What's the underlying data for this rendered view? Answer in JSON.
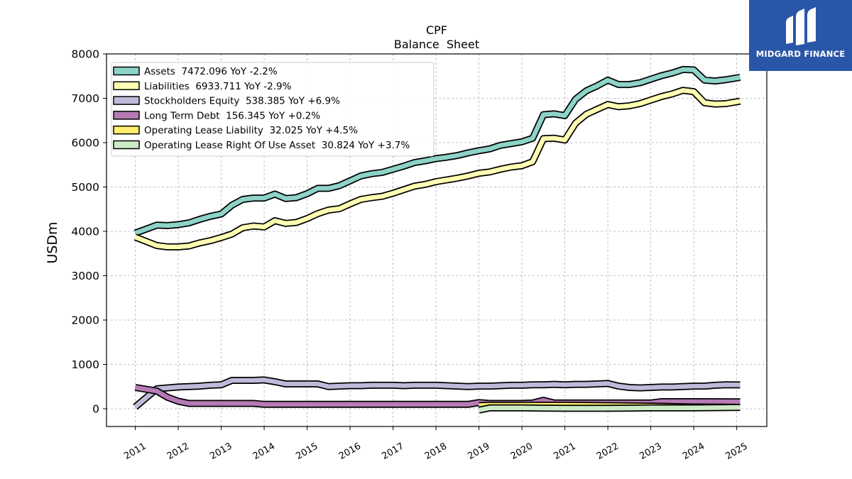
{
  "chart_data": {
    "type": "line",
    "title": "CPF",
    "subtitle": "Balance  Sheet",
    "ylabel": "USDm",
    "xlabel": "",
    "ylim": [
      -400,
      8000
    ],
    "xlim": [
      2010.33,
      2025.7
    ],
    "yticks": [
      0,
      1000,
      2000,
      3000,
      4000,
      5000,
      6000,
      7000,
      8000
    ],
    "xticks": [
      "2011",
      "2012",
      "2013",
      "2014",
      "2015",
      "2016",
      "2017",
      "2018",
      "2019",
      "2020",
      "2021",
      "2022",
      "2023",
      "2024",
      "2025"
    ],
    "grid": true,
    "legend_position": "top-left",
    "series": [
      {
        "name": "Assets",
        "legend": "Assets  7472.096 YoY -2.2%",
        "color": "#8dd3c7",
        "points": [
          [
            2011.0,
            3960
          ],
          [
            2011.5,
            4140
          ],
          [
            2011.75,
            4130
          ],
          [
            2012.0,
            4150
          ],
          [
            2012.25,
            4190
          ],
          [
            2012.5,
            4270
          ],
          [
            2012.75,
            4340
          ],
          [
            2013.0,
            4390
          ],
          [
            2013.25,
            4590
          ],
          [
            2013.5,
            4720
          ],
          [
            2013.75,
            4750
          ],
          [
            2014.0,
            4750
          ],
          [
            2014.25,
            4840
          ],
          [
            2014.5,
            4740
          ],
          [
            2014.75,
            4760
          ],
          [
            2015.0,
            4850
          ],
          [
            2015.25,
            4970
          ],
          [
            2015.5,
            4970
          ],
          [
            2015.75,
            5030
          ],
          [
            2016.0,
            5140
          ],
          [
            2016.25,
            5250
          ],
          [
            2016.5,
            5300
          ],
          [
            2016.75,
            5330
          ],
          [
            2017.0,
            5400
          ],
          [
            2017.25,
            5470
          ],
          [
            2017.5,
            5550
          ],
          [
            2017.75,
            5590
          ],
          [
            2018.0,
            5640
          ],
          [
            2018.25,
            5670
          ],
          [
            2018.5,
            5710
          ],
          [
            2018.75,
            5770
          ],
          [
            2019.0,
            5820
          ],
          [
            2019.25,
            5860
          ],
          [
            2019.5,
            5940
          ],
          [
            2019.75,
            5980
          ],
          [
            2020.0,
            6020
          ],
          [
            2020.25,
            6100
          ],
          [
            2020.5,
            6630
          ],
          [
            2020.75,
            6650
          ],
          [
            2021.0,
            6610
          ],
          [
            2021.25,
            6980
          ],
          [
            2021.5,
            7170
          ],
          [
            2021.75,
            7280
          ],
          [
            2022.0,
            7410
          ],
          [
            2022.25,
            7310
          ],
          [
            2022.5,
            7310
          ],
          [
            2022.75,
            7350
          ],
          [
            2023.0,
            7430
          ],
          [
            2023.25,
            7510
          ],
          [
            2023.5,
            7570
          ],
          [
            2023.75,
            7650
          ],
          [
            2024.0,
            7640
          ],
          [
            2024.25,
            7410
          ],
          [
            2024.5,
            7390
          ],
          [
            2024.75,
            7420
          ],
          [
            2025.08,
            7472
          ]
        ]
      },
      {
        "name": "Liabilities",
        "legend": "Liabilities  6933.711 YoY -2.9%",
        "color": "#ffffb3",
        "points": [
          [
            2011.0,
            3870
          ],
          [
            2011.5,
            3680
          ],
          [
            2011.75,
            3650
          ],
          [
            2012.0,
            3650
          ],
          [
            2012.25,
            3670
          ],
          [
            2012.5,
            3740
          ],
          [
            2012.75,
            3790
          ],
          [
            2013.0,
            3860
          ],
          [
            2013.25,
            3940
          ],
          [
            2013.5,
            4080
          ],
          [
            2013.75,
            4120
          ],
          [
            2014.0,
            4100
          ],
          [
            2014.25,
            4240
          ],
          [
            2014.5,
            4180
          ],
          [
            2014.75,
            4200
          ],
          [
            2015.0,
            4290
          ],
          [
            2015.25,
            4400
          ],
          [
            2015.5,
            4480
          ],
          [
            2015.75,
            4510
          ],
          [
            2016.0,
            4620
          ],
          [
            2016.25,
            4720
          ],
          [
            2016.5,
            4760
          ],
          [
            2016.75,
            4790
          ],
          [
            2017.0,
            4860
          ],
          [
            2017.25,
            4940
          ],
          [
            2017.5,
            5020
          ],
          [
            2017.75,
            5060
          ],
          [
            2018.0,
            5120
          ],
          [
            2018.25,
            5160
          ],
          [
            2018.5,
            5200
          ],
          [
            2018.75,
            5250
          ],
          [
            2019.0,
            5310
          ],
          [
            2019.25,
            5340
          ],
          [
            2019.5,
            5400
          ],
          [
            2019.75,
            5450
          ],
          [
            2020.0,
            5480
          ],
          [
            2020.25,
            5570
          ],
          [
            2020.5,
            6090
          ],
          [
            2020.75,
            6100
          ],
          [
            2021.0,
            6060
          ],
          [
            2021.25,
            6440
          ],
          [
            2021.5,
            6640
          ],
          [
            2021.75,
            6750
          ],
          [
            2022.0,
            6860
          ],
          [
            2022.25,
            6810
          ],
          [
            2022.5,
            6830
          ],
          [
            2022.75,
            6880
          ],
          [
            2023.0,
            6960
          ],
          [
            2023.25,
            7040
          ],
          [
            2023.5,
            7100
          ],
          [
            2023.75,
            7180
          ],
          [
            2024.0,
            7150
          ],
          [
            2024.25,
            6900
          ],
          [
            2024.5,
            6870
          ],
          [
            2024.75,
            6880
          ],
          [
            2025.08,
            6934
          ]
        ]
      },
      {
        "name": "Stockholders Equity",
        "legend": "Stockholders Equity  538.385 YoY +6.9%",
        "color": "#bebada",
        "points": [
          [
            2011.0,
            40
          ],
          [
            2011.5,
            450
          ],
          [
            2011.75,
            470
          ],
          [
            2012.0,
            490
          ],
          [
            2012.25,
            500
          ],
          [
            2012.5,
            510
          ],
          [
            2012.75,
            530
          ],
          [
            2013.0,
            540
          ],
          [
            2013.25,
            640
          ],
          [
            2013.5,
            640
          ],
          [
            2013.75,
            640
          ],
          [
            2014.0,
            650
          ],
          [
            2014.25,
            610
          ],
          [
            2014.5,
            560
          ],
          [
            2014.75,
            560
          ],
          [
            2015.0,
            560
          ],
          [
            2015.25,
            560
          ],
          [
            2015.5,
            500
          ],
          [
            2015.75,
            510
          ],
          [
            2016.0,
            520
          ],
          [
            2016.25,
            520
          ],
          [
            2016.5,
            530
          ],
          [
            2016.75,
            530
          ],
          [
            2017.0,
            530
          ],
          [
            2017.25,
            520
          ],
          [
            2017.5,
            530
          ],
          [
            2017.75,
            530
          ],
          [
            2018.0,
            530
          ],
          [
            2018.25,
            520
          ],
          [
            2018.5,
            510
          ],
          [
            2018.75,
            500
          ],
          [
            2019.0,
            510
          ],
          [
            2019.25,
            510
          ],
          [
            2019.5,
            520
          ],
          [
            2019.75,
            530
          ],
          [
            2020.0,
            530
          ],
          [
            2020.25,
            540
          ],
          [
            2020.5,
            540
          ],
          [
            2020.75,
            550
          ],
          [
            2021.0,
            540
          ],
          [
            2021.25,
            550
          ],
          [
            2021.5,
            550
          ],
          [
            2021.75,
            560
          ],
          [
            2022.0,
            570
          ],
          [
            2022.25,
            510
          ],
          [
            2022.5,
            480
          ],
          [
            2022.75,
            470
          ],
          [
            2023.0,
            480
          ],
          [
            2023.25,
            490
          ],
          [
            2023.5,
            490
          ],
          [
            2023.75,
            500
          ],
          [
            2024.0,
            510
          ],
          [
            2024.25,
            510
          ],
          [
            2024.5,
            530
          ],
          [
            2024.75,
            540
          ],
          [
            2025.08,
            538
          ]
        ]
      },
      {
        "name": "Long Term Debt",
        "legend": "Long Term Debt  156.345 YoY +0.2%",
        "color": "#b77ab6",
        "points": [
          [
            2011.0,
            480
          ],
          [
            2011.5,
            400
          ],
          [
            2011.75,
            260
          ],
          [
            2012.0,
            170
          ],
          [
            2012.25,
            120
          ],
          [
            2012.5,
            120
          ],
          [
            2012.75,
            120
          ],
          [
            2013.0,
            120
          ],
          [
            2013.25,
            120
          ],
          [
            2013.5,
            120
          ],
          [
            2013.75,
            120
          ],
          [
            2014.0,
            100
          ],
          [
            2014.5,
            100
          ],
          [
            2015.0,
            100
          ],
          [
            2016.0,
            100
          ],
          [
            2017.0,
            100
          ],
          [
            2018.0,
            100
          ],
          [
            2018.75,
            100
          ],
          [
            2019.0,
            140
          ],
          [
            2019.25,
            120
          ],
          [
            2019.5,
            120
          ],
          [
            2020.0,
            120
          ],
          [
            2020.25,
            130
          ],
          [
            2020.5,
            190
          ],
          [
            2020.75,
            130
          ],
          [
            2021.0,
            130
          ],
          [
            2022.0,
            130
          ],
          [
            2023.0,
            130
          ],
          [
            2023.25,
            160
          ],
          [
            2024.0,
            160
          ],
          [
            2025.08,
            156
          ]
        ]
      },
      {
        "name": "Operating Lease Liability",
        "legend": "Operating Lease Liability  32.025 YoY +4.5%",
        "color": "#ffed6f",
        "points": [
          [
            2019.0,
            70
          ],
          [
            2019.25,
            80
          ],
          [
            2020.0,
            80
          ],
          [
            2021.0,
            80
          ],
          [
            2022.0,
            70
          ],
          [
            2023.0,
            60
          ],
          [
            2024.0,
            40
          ],
          [
            2025.08,
            32
          ]
        ]
      },
      {
        "name": "Operating Lease Right Of Use Asset",
        "legend": "Operating Lease Right Of Use Asset  30.824 YoY +3.7%",
        "color": "#ccebc5",
        "points": [
          [
            2019.0,
            -30
          ],
          [
            2019.25,
            20
          ],
          [
            2020.0,
            20
          ],
          [
            2021.0,
            10
          ],
          [
            2022.0,
            10
          ],
          [
            2023.0,
            20
          ],
          [
            2024.0,
            20
          ],
          [
            2025.08,
            31
          ]
        ]
      }
    ]
  },
  "logo": {
    "text": "MIDGARD FINANCE",
    "color": "#2a56a8"
  }
}
